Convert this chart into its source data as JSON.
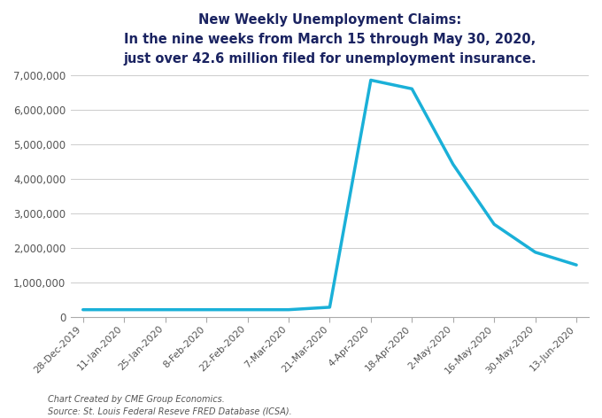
{
  "title_line1": "New Weekly Unemployment Claims:",
  "title_line2": "In the nine weeks from March 15 through May 30, 2020,",
  "title_line3": "just over 42.6 million filed for unemployment insurance.",
  "x_labels": [
    "28-Dec-2019",
    "11-Jan-2020",
    "25-Jan-2020",
    "8-Feb-2020",
    "22-Feb-2020",
    "7-Mar-2020",
    "21-Mar-2020",
    "4-Apr-2020",
    "18-Apr-2020",
    "2-May-2020",
    "16-May-2020",
    "30-May-2020",
    "13-Jun-2020"
  ],
  "y_values": [
    211000,
    211000,
    211000,
    211000,
    211000,
    211000,
    282000,
    6867000,
    6615000,
    4427000,
    2687000,
    1877000,
    1508000
  ],
  "line_color": "#1ab0d8",
  "title_color": "#1a2361",
  "background_color": "#ffffff",
  "grid_color": "#cccccc",
  "tick_label_color": "#555555",
  "footer_line1": "Chart Created by CME Group Economics.",
  "footer_line2": "Source: St. Louis Federal Reseve FRED Database (ICSA).",
  "ylim": [
    0,
    7000000
  ],
  "yticks": [
    0,
    1000000,
    2000000,
    3000000,
    4000000,
    5000000,
    6000000,
    7000000
  ]
}
